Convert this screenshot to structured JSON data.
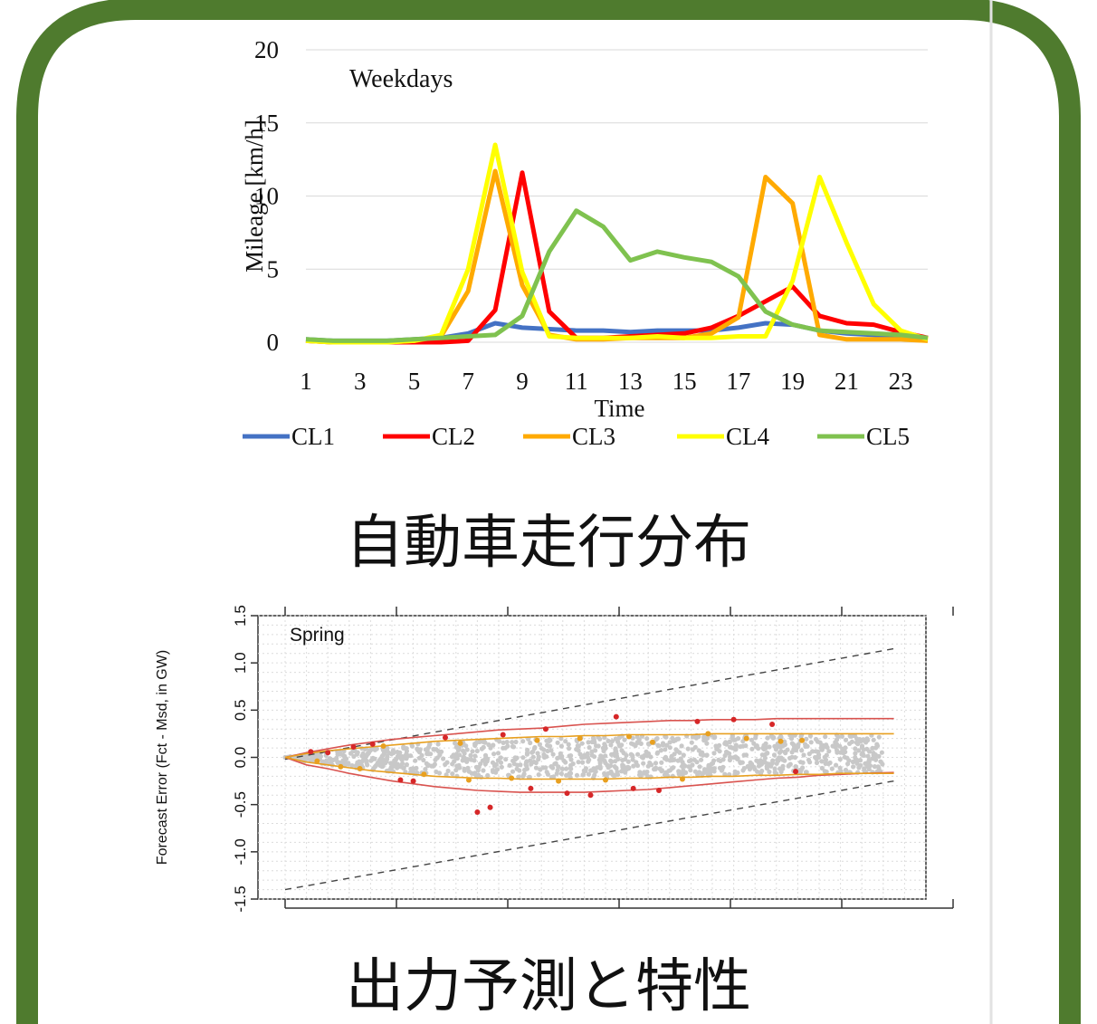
{
  "colors": {
    "frame": "#4f7b2e",
    "panel": "#ffffff",
    "divider": "#e2e2e2"
  },
  "captions": {
    "top": "自動車走行分布",
    "bottom": "出力予測と特性"
  },
  "chart_data": [
    {
      "type": "line",
      "title": "",
      "annotation": "Weekdays",
      "xlabel": "Time",
      "ylabel": "Mileage [km/h]",
      "ylim": [
        0,
        20
      ],
      "yticks": [
        0,
        5,
        10,
        15,
        20
      ],
      "x": [
        1,
        2,
        3,
        4,
        5,
        6,
        7,
        8,
        9,
        10,
        11,
        12,
        13,
        14,
        15,
        16,
        17,
        18,
        19,
        20,
        21,
        22,
        23,
        24
      ],
      "xtick_labels": [
        "1",
        "3",
        "5",
        "7",
        "9",
        "11",
        "13",
        "15",
        "17",
        "19",
        "21",
        "23"
      ],
      "grid": true,
      "legend_position": "bottom",
      "series": [
        {
          "name": "CL1",
          "color": "#4472c4",
          "values": [
            0.2,
            0.1,
            0.1,
            0.1,
            0.2,
            0.3,
            0.6,
            1.3,
            1.0,
            0.9,
            0.8,
            0.8,
            0.7,
            0.8,
            0.8,
            0.8,
            1.0,
            1.3,
            1.2,
            0.8,
            0.6,
            0.5,
            0.4,
            0.3
          ]
        },
        {
          "name": "CL2",
          "color": "#ff0000",
          "values": [
            0.1,
            0.0,
            0.0,
            0.0,
            0.0,
            0.0,
            0.1,
            2.2,
            11.6,
            2.1,
            0.3,
            0.3,
            0.4,
            0.5,
            0.6,
            1.0,
            1.8,
            2.8,
            3.8,
            1.8,
            1.3,
            1.2,
            0.7,
            0.3
          ]
        },
        {
          "name": "CL3",
          "color": "#ffaa00",
          "values": [
            0.1,
            0.0,
            0.0,
            0.0,
            0.1,
            0.4,
            3.5,
            11.7,
            3.9,
            0.5,
            0.2,
            0.2,
            0.3,
            0.3,
            0.3,
            0.6,
            1.7,
            11.3,
            9.5,
            0.5,
            0.2,
            0.2,
            0.2,
            0.1
          ]
        },
        {
          "name": "CL4",
          "color": "#ffff00",
          "values": [
            0.1,
            0.0,
            0.0,
            0.0,
            0.1,
            0.5,
            5.0,
            13.5,
            4.8,
            0.4,
            0.3,
            0.3,
            0.3,
            0.4,
            0.3,
            0.3,
            0.4,
            0.4,
            4.2,
            11.3,
            6.8,
            2.6,
            0.8,
            0.2
          ]
        },
        {
          "name": "CL5",
          "color": "#7fc24f",
          "values": [
            0.2,
            0.1,
            0.1,
            0.1,
            0.2,
            0.3,
            0.4,
            0.5,
            1.8,
            6.2,
            9.0,
            7.9,
            5.6,
            6.2,
            5.8,
            5.5,
            4.5,
            2.1,
            1.2,
            0.8,
            0.7,
            0.6,
            0.5,
            0.3
          ]
        }
      ]
    },
    {
      "type": "scatter",
      "title": "",
      "annotation": "Spring",
      "xlabel": "",
      "ylabel": "Forecast Error (Fct - Msd, in GW)",
      "ylim": [
        -1.5,
        1.5
      ],
      "yticks": [
        "-1.5",
        "-1.0",
        "-0.5",
        "0.0",
        "0.5",
        "1.0",
        "1.5"
      ],
      "xlim": [
        0,
        30
      ],
      "grid": true,
      "colors": {
        "points": "#c8c8c8",
        "red_points": "#d62728",
        "orange_points": "#e8a020",
        "red_band": "#d9534f",
        "orange_band": "#e8a020",
        "dashed": "#444444"
      },
      "series": [
        {
          "name": "",
          "kind": "dashed-upper",
          "x": [
            0,
            28.5
          ],
          "values": [
            -0.02,
            1.15
          ]
        },
        {
          "name": "",
          "kind": "dashed-lower",
          "x": [
            0,
            28.5
          ],
          "values": [
            -1.4,
            -0.25
          ]
        },
        {
          "name": "",
          "kind": "red-upper",
          "x": [
            0,
            1,
            2,
            3,
            4,
            5,
            6,
            7,
            8,
            9,
            10,
            11,
            12,
            13,
            14,
            15,
            16,
            17,
            18,
            19,
            20,
            21,
            22,
            23,
            24,
            25,
            26,
            27,
            28.5
          ],
          "values": [
            0.0,
            0.05,
            0.09,
            0.13,
            0.16,
            0.19,
            0.21,
            0.23,
            0.25,
            0.27,
            0.29,
            0.3,
            0.31,
            0.33,
            0.35,
            0.36,
            0.37,
            0.38,
            0.39,
            0.39,
            0.4,
            0.4,
            0.4,
            0.41,
            0.41,
            0.41,
            0.41,
            0.41,
            0.41
          ]
        },
        {
          "name": "",
          "kind": "red-lower",
          "x": [
            0,
            1,
            2,
            3,
            4,
            5,
            6,
            7,
            8,
            9,
            10,
            11,
            12,
            13,
            14,
            15,
            16,
            17,
            18,
            19,
            20,
            21,
            22,
            23,
            24,
            25,
            26,
            27,
            28.5
          ],
          "values": [
            0.0,
            -0.08,
            -0.12,
            -0.17,
            -0.21,
            -0.25,
            -0.28,
            -0.31,
            -0.33,
            -0.35,
            -0.36,
            -0.37,
            -0.37,
            -0.37,
            -0.37,
            -0.36,
            -0.35,
            -0.34,
            -0.32,
            -0.3,
            -0.28,
            -0.26,
            -0.24,
            -0.22,
            -0.21,
            -0.19,
            -0.18,
            -0.17,
            -0.16
          ]
        },
        {
          "name": "",
          "kind": "orange-upper",
          "x": [
            0,
            1,
            2,
            3,
            4,
            5,
            6,
            7,
            8,
            9,
            10,
            11,
            12,
            13,
            14,
            15,
            16,
            17,
            18,
            19,
            20,
            21,
            22,
            23,
            24,
            25,
            26,
            27,
            28.5
          ],
          "values": [
            0.0,
            0.04,
            0.07,
            0.09,
            0.11,
            0.13,
            0.15,
            0.17,
            0.18,
            0.19,
            0.2,
            0.21,
            0.22,
            0.22,
            0.23,
            0.23,
            0.24,
            0.24,
            0.24,
            0.24,
            0.25,
            0.25,
            0.25,
            0.25,
            0.25,
            0.25,
            0.25,
            0.25,
            0.25
          ]
        },
        {
          "name": "",
          "kind": "orange-lower",
          "x": [
            0,
            1,
            2,
            3,
            4,
            5,
            6,
            7,
            8,
            9,
            10,
            11,
            12,
            13,
            14,
            15,
            16,
            17,
            18,
            19,
            20,
            21,
            22,
            23,
            24,
            25,
            26,
            27,
            28.5
          ],
          "values": [
            0.0,
            -0.05,
            -0.08,
            -0.11,
            -0.14,
            -0.16,
            -0.18,
            -0.2,
            -0.21,
            -0.22,
            -0.22,
            -0.23,
            -0.23,
            -0.23,
            -0.23,
            -0.23,
            -0.22,
            -0.22,
            -0.21,
            -0.21,
            -0.2,
            -0.2,
            -0.19,
            -0.19,
            -0.18,
            -0.18,
            -0.17,
            -0.17,
            -0.17
          ]
        }
      ],
      "red_points": [
        [
          1.2,
          0.06
        ],
        [
          2.0,
          0.05
        ],
        [
          3.2,
          0.11
        ],
        [
          4.1,
          0.14
        ],
        [
          5.4,
          -0.24
        ],
        [
          6.0,
          -0.25
        ],
        [
          7.5,
          0.21
        ],
        [
          9.0,
          -0.58
        ],
        [
          9.6,
          -0.53
        ],
        [
          10.2,
          0.24
        ],
        [
          12.2,
          0.3
        ],
        [
          11.5,
          -0.33
        ],
        [
          13.2,
          -0.38
        ],
        [
          14.3,
          -0.4
        ],
        [
          15.5,
          0.43
        ],
        [
          16.3,
          -0.33
        ],
        [
          17.5,
          -0.35
        ],
        [
          19.3,
          0.38
        ],
        [
          21.0,
          0.4
        ],
        [
          22.8,
          0.35
        ],
        [
          23.9,
          -0.15
        ]
      ],
      "orange_points": [
        [
          1.5,
          -0.04
        ],
        [
          2.6,
          -0.1
        ],
        [
          3.5,
          -0.12
        ],
        [
          4.6,
          0.12
        ],
        [
          6.5,
          -0.18
        ],
        [
          8.2,
          0.15
        ],
        [
          8.6,
          -0.24
        ],
        [
          10.6,
          -0.22
        ],
        [
          11.8,
          0.18
        ],
        [
          12.8,
          -0.25
        ],
        [
          13.8,
          0.2
        ],
        [
          15.0,
          -0.24
        ],
        [
          16.1,
          0.22
        ],
        [
          17.2,
          0.16
        ],
        [
          18.6,
          -0.23
        ],
        [
          19.8,
          0.25
        ],
        [
          21.6,
          0.2
        ],
        [
          23.2,
          0.17
        ],
        [
          24.2,
          0.18
        ]
      ]
    }
  ]
}
